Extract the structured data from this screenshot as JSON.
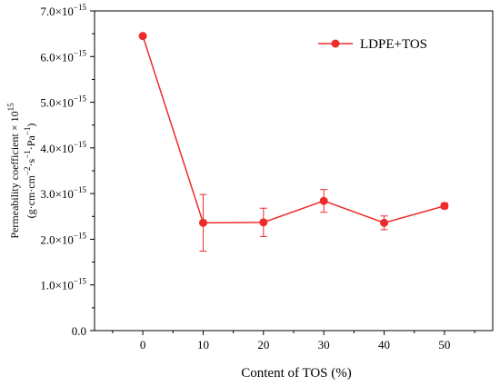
{
  "chart_data": {
    "type": "line",
    "xlabel": "Content of TOS (%)",
    "ylabel": {
      "line1": "Permeability coefficient × 10",
      "line1_sup": "15",
      "line2": "(g·cm·cm",
      "line2_sup1": "−2",
      "line2_mid1": "·s",
      "line2_sup2": "−1",
      "line2_mid2": "·Pa",
      "line2_sup3": "−1",
      "line2_end": ")"
    },
    "x_ticks": [
      "0",
      "10",
      "20",
      "30",
      "40",
      "50"
    ],
    "y_tick_labels": [
      {
        "base": "0.0",
        "exp": ""
      },
      {
        "base": "1.0×10",
        "exp": "−15"
      },
      {
        "base": "2.0×10",
        "exp": "−15"
      },
      {
        "base": "3.0×10",
        "exp": "−15"
      },
      {
        "base": "4.0×10",
        "exp": "−15"
      },
      {
        "base": "5.0×10",
        "exp": "−15"
      },
      {
        "base": "6.0×10",
        "exp": "−15"
      },
      {
        "base": "7.0×10",
        "exp": "−15"
      }
    ],
    "xlim": [
      -8,
      58
    ],
    "ylim": [
      0,
      7.0
    ],
    "y_unit_scale": "1e-15",
    "x_tick_values": [
      0,
      10,
      20,
      30,
      40,
      50
    ],
    "y_tick_values": [
      0,
      1,
      2,
      3,
      4,
      5,
      6,
      7
    ],
    "series": [
      {
        "name": "LDPE+TOS",
        "color": "#ee2b2b",
        "x": [
          0,
          10,
          20,
          30,
          40,
          50
        ],
        "y": [
          6.45,
          2.36,
          2.37,
          2.84,
          2.36,
          2.73
        ],
        "err": [
          0.03,
          0.62,
          0.31,
          0.25,
          0.15,
          0.06
        ]
      }
    ],
    "legend_position": "top-right",
    "grid": false
  }
}
